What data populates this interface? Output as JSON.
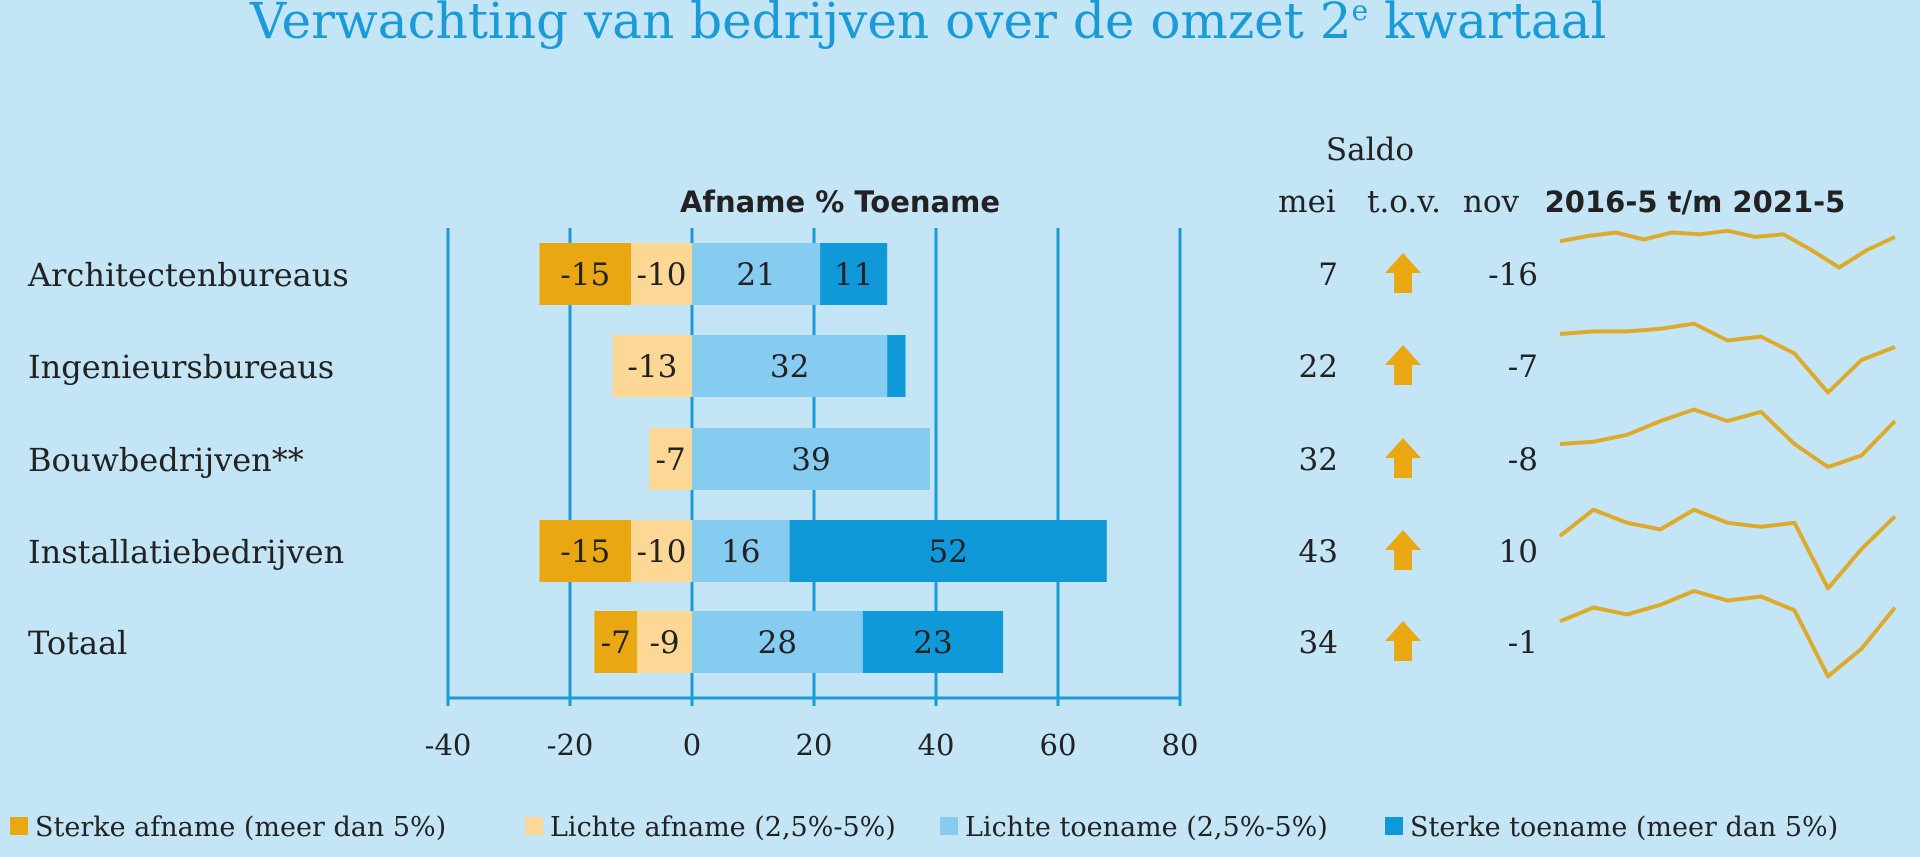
{
  "title": "Verwachting van bedrijven over de omzet 2",
  "title_sup": "e",
  "title_tail": " kwartaal",
  "colors": {
    "background": "#c4e5f5",
    "sterke_afname": "#e9a712",
    "lichte_afname": "#fcd795",
    "lichte_toename": "#86ccf0",
    "sterke_toename": "#0f99d8",
    "axis": "#1a9bd7",
    "total": "#1a9bd7",
    "arrow": "#e9a712",
    "sparkline": "#ddaa2c"
  },
  "headers": {
    "chart": "Afname % Toename",
    "saldo": "Saldo",
    "mei": "mei",
    "tov": "t.o.v.",
    "nov": "nov",
    "trend": "2016-5 t/m 2021-5"
  },
  "chart_data": {
    "type": "bar",
    "subtype": "diverging-stacked-horizontal",
    "title": "Verwachting van bedrijven over de omzet 2e kwartaal",
    "xlabel": "Afname % Toename",
    "xlim": [
      -40,
      80
    ],
    "xticks": [
      -40,
      -20,
      0,
      20,
      40,
      60,
      80
    ],
    "grid": true,
    "legend_position": "bottom",
    "categories": [
      "Architectenbureaus",
      "Ingenieursbureaus",
      "Bouwbedrijven**",
      "Installatiebedrijven",
      "Totaal"
    ],
    "series": [
      {
        "name": "Sterke afname (meer dan 5%)",
        "values": [
          -15,
          0,
          0,
          -15,
          -7
        ],
        "labels": [
          "-15",
          "",
          "",
          "-15",
          "-7"
        ]
      },
      {
        "name": "Lichte afname (2,5%-5%)",
        "values": [
          -10,
          -13,
          -7,
          -10,
          -9
        ],
        "labels": [
          "-10",
          "-13",
          "-7",
          "-10",
          "-9"
        ]
      },
      {
        "name": "Lichte toename (2,5%-5%)",
        "values": [
          21,
          32,
          39,
          16,
          28
        ],
        "labels": [
          "21",
          "32",
          "39",
          "16",
          "28"
        ]
      },
      {
        "name": "Sterke toename (meer dan 5%)",
        "values": [
          11,
          3,
          0,
          52,
          23
        ],
        "labels": [
          "11",
          "",
          "",
          "52",
          "23"
        ]
      }
    ],
    "saldo": {
      "mei": [
        "7",
        "22",
        "32",
        "43",
        "34"
      ],
      "tov": [
        "up",
        "up",
        "up",
        "up",
        "up"
      ],
      "nov": [
        "-16",
        "-7",
        "-8",
        "10",
        "-1"
      ]
    },
    "sparklines": [
      [
        50,
        56,
        60,
        52,
        60,
        58,
        62,
        55,
        58,
        40,
        20,
        40,
        55
      ],
      [
        60,
        62,
        62,
        64,
        68,
        55,
        58,
        45,
        15,
        40,
        50
      ],
      [
        40,
        42,
        48,
        60,
        70,
        60,
        68,
        40,
        20,
        30,
        60
      ],
      [
        45,
        65,
        55,
        50,
        65,
        55,
        52,
        55,
        5,
        35,
        60
      ],
      [
        50,
        60,
        55,
        62,
        72,
        65,
        68,
        58,
        10,
        30,
        60
      ]
    ],
    "total_index": 4
  }
}
